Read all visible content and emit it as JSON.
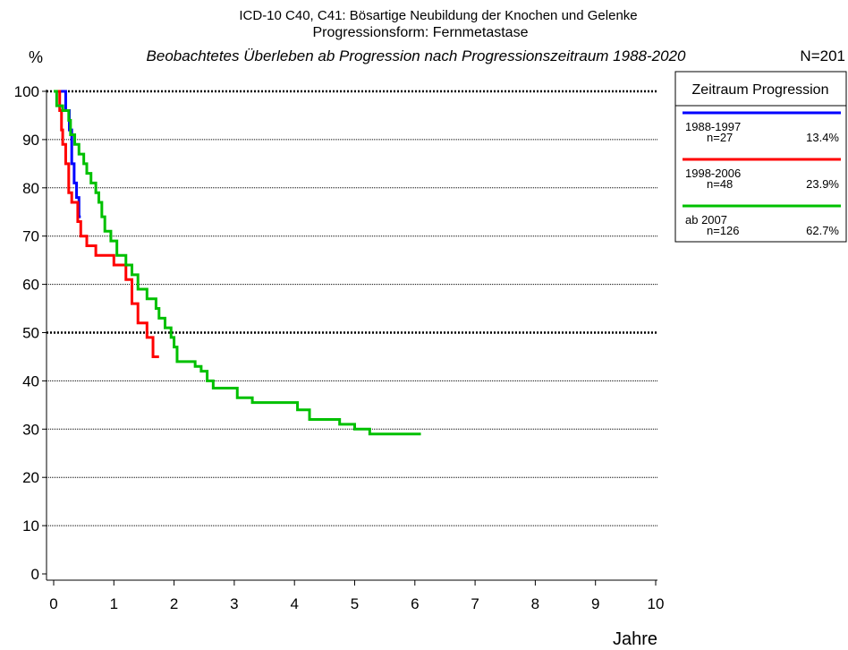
{
  "chart_data": {
    "type": "step",
    "title": "ICD-10 C40, C41: Bösartige Neubildung der Knochen und Gelenke",
    "subtitle": "Progressionsform: Fernmetastase",
    "description": "Beobachtetes Überleben ab Progression nach Progressionszeitraum 1988-2020",
    "total": "N=201",
    "y_label": "%",
    "x_label": "Jahre",
    "legend_title": "Zeitraum Progression",
    "xlim": [
      0,
      10
    ],
    "xticks": [
      0,
      1,
      2,
      3,
      4,
      5,
      6,
      7,
      8,
      9,
      10
    ],
    "ylim": [
      0,
      100
    ],
    "yticks": [
      0,
      10,
      20,
      30,
      40,
      50,
      60,
      70,
      80,
      90,
      100
    ],
    "bold_gridlines": [
      50,
      100
    ],
    "grid": true,
    "series": [
      {
        "name": "1988-1997",
        "count": "n=27",
        "share": "13.4%",
        "color": "#0000ff",
        "x": [
          0,
          0.2,
          0.26,
          0.3,
          0.34,
          0.38,
          0.42,
          0.45
        ],
        "values": [
          100,
          96,
          92,
          85,
          81,
          78,
          74,
          74
        ]
      },
      {
        "name": "1998-2006",
        "count": "n=48",
        "share": "23.9%",
        "color": "#ff0000",
        "x": [
          0,
          0.1,
          0.13,
          0.15,
          0.2,
          0.25,
          0.3,
          0.4,
          0.45,
          0.55,
          0.7,
          1.0,
          1.2,
          1.3,
          1.4,
          1.55,
          1.65,
          1.75
        ],
        "values": [
          100,
          96,
          92,
          89,
          85,
          79,
          77,
          73,
          70,
          68,
          66,
          64,
          61,
          56,
          52,
          49,
          45,
          45
        ]
      },
      {
        "name": "ab 2007",
        "count": "n=126",
        "share": "62.7%",
        "color": "#00c000",
        "x": [
          0,
          0.05,
          0.15,
          0.25,
          0.28,
          0.35,
          0.42,
          0.5,
          0.55,
          0.62,
          0.7,
          0.75,
          0.8,
          0.85,
          0.95,
          1.05,
          1.2,
          1.3,
          1.4,
          1.55,
          1.7,
          1.75,
          1.85,
          1.95,
          2.0,
          2.05,
          2.35,
          2.45,
          2.55,
          2.65,
          3.05,
          3.3,
          4.05,
          4.25,
          4.75,
          5.0,
          5.25,
          6.1
        ],
        "values": [
          100,
          97,
          96,
          94,
          91,
          89,
          87,
          85,
          83,
          81,
          79,
          77,
          74,
          71,
          69,
          66,
          64,
          62,
          59,
          57,
          55,
          53,
          51,
          49,
          47,
          44,
          43,
          42,
          40,
          38.5,
          36.5,
          35.5,
          34,
          32,
          31,
          30,
          29,
          29
        ]
      }
    ]
  }
}
